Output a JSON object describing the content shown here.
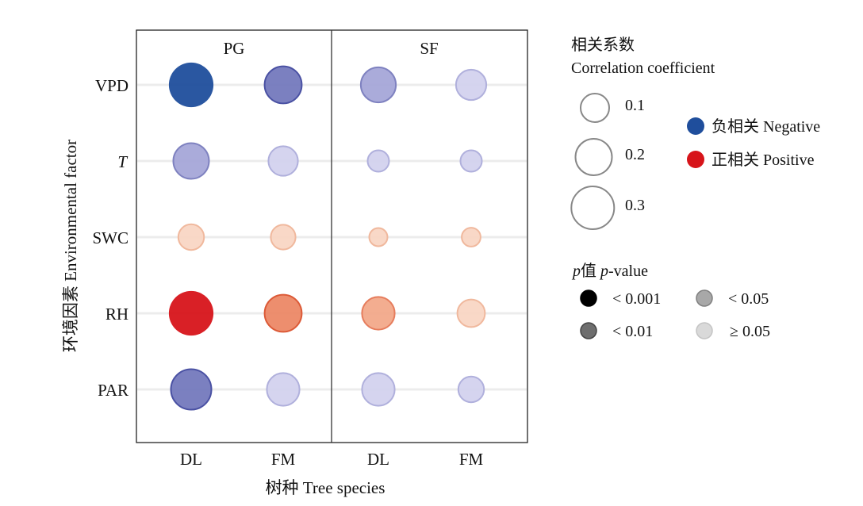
{
  "chart_data": {
    "type": "scatter",
    "subtype": "bubble-correlation-matrix",
    "facets": [
      "PG",
      "SF"
    ],
    "categories": [
      "DL",
      "FM"
    ],
    "rows": [
      "VPD",
      "T",
      "SWC",
      "RH",
      "PAR"
    ],
    "row_italic": [
      false,
      true,
      false,
      false,
      false
    ],
    "xlabel": "树种 Tree species",
    "ylabel": "环境因素 Environmental factor",
    "grid": "horizontal",
    "legend_position": "right",
    "colors": {
      "negative": "#1f4e9c",
      "positive": "#d7141a",
      "neg_mid": "#7479bd",
      "pos_mid": "#ec8866",
      "neg_light": "#b7b6df",
      "pos_light": "#f6c7ad",
      "gridline": "#ececec"
    },
    "points": [
      {
        "row": "VPD",
        "facet": "PG",
        "species": "DL",
        "r": -0.33,
        "p": "<0.001"
      },
      {
        "row": "VPD",
        "facet": "PG",
        "species": "FM",
        "r": -0.21,
        "p": "<0.01"
      },
      {
        "row": "VPD",
        "facet": "SF",
        "species": "DL",
        "r": -0.18,
        "p": "<0.05"
      },
      {
        "row": "VPD",
        "facet": "SF",
        "species": "FM",
        "r": -0.12,
        "p": ">=0.05"
      },
      {
        "row": "T",
        "facet": "PG",
        "species": "DL",
        "r": -0.19,
        "p": "<0.05"
      },
      {
        "row": "T",
        "facet": "PG",
        "species": "FM",
        "r": -0.11,
        "p": ">=0.05"
      },
      {
        "row": "T",
        "facet": "SF",
        "species": "DL",
        "r": -0.03,
        "p": ">=0.05"
      },
      {
        "row": "T",
        "facet": "SF",
        "species": "FM",
        "r": -0.03,
        "p": ">=0.05"
      },
      {
        "row": "SWC",
        "facet": "PG",
        "species": "DL",
        "r": 0.07,
        "p": ">=0.05"
      },
      {
        "row": "SWC",
        "facet": "PG",
        "species": "FM",
        "r": 0.06,
        "p": ">=0.05"
      },
      {
        "row": "SWC",
        "facet": "SF",
        "species": "DL",
        "r": 0.005,
        "p": ">=0.05"
      },
      {
        "row": "SWC",
        "facet": "SF",
        "species": "FM",
        "r": 0.01,
        "p": ">=0.05"
      },
      {
        "row": "RH",
        "facet": "PG",
        "species": "DL",
        "r": 0.33,
        "p": "<0.001"
      },
      {
        "row": "RH",
        "facet": "PG",
        "species": "FM",
        "r": 0.21,
        "p": "<0.01"
      },
      {
        "row": "RH",
        "facet": "SF",
        "species": "DL",
        "r": 0.15,
        "p": "<0.05"
      },
      {
        "row": "RH",
        "facet": "SF",
        "species": "FM",
        "r": 0.09,
        "p": ">=0.05"
      },
      {
        "row": "PAR",
        "facet": "PG",
        "species": "DL",
        "r": -0.26,
        "p": "<0.01"
      },
      {
        "row": "PAR",
        "facet": "PG",
        "species": "FM",
        "r": -0.15,
        "p": ">=0.05"
      },
      {
        "row": "PAR",
        "facet": "SF",
        "species": "DL",
        "r": -0.15,
        "p": ">=0.05"
      },
      {
        "row": "PAR",
        "facet": "SF",
        "species": "FM",
        "r": -0.07,
        "p": ">=0.05"
      }
    ],
    "legend": {
      "size_title_cn": "相关系数",
      "size_title_en": "Correlation coefficient",
      "size_values": [
        0.1,
        0.2,
        0.3
      ],
      "size_labels": [
        "0.1",
        "0.2",
        "0.3"
      ],
      "sign_entries": [
        {
          "label": "负相关 Negative",
          "color": "#1f4e9c"
        },
        {
          "label": "正相关 Positive",
          "color": "#d7141a"
        }
      ],
      "p_title_italic": "p",
      "p_title_cn": "值 ",
      "p_title_en_italic": "p",
      "p_title_en": "-value",
      "p_entries": [
        {
          "label": "< 0.001",
          "key": "<0.001"
        },
        {
          "label": "< 0.05",
          "key": "<0.05"
        },
        {
          "label": "< 0.01",
          "key": "<0.01"
        },
        {
          "label": "≥ 0.05",
          "key": ">=0.05"
        }
      ]
    }
  }
}
